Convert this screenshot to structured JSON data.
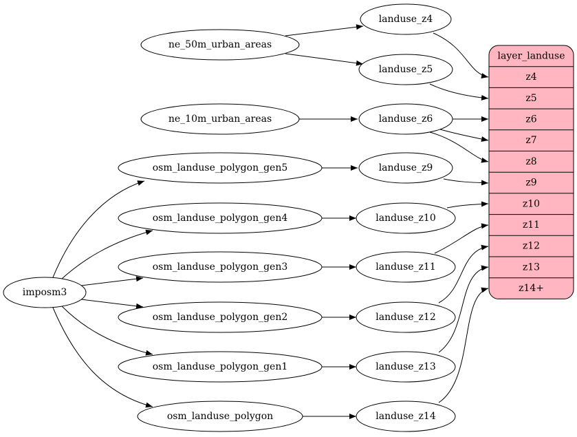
{
  "nodes": {
    "ne50": "ne_50m_urban_areas",
    "ne10": "ne_10m_urban_areas",
    "gen5": "osm_landuse_polygon_gen5",
    "gen4": "osm_landuse_polygon_gen4",
    "gen3": "osm_landuse_polygon_gen3",
    "gen2": "osm_landuse_polygon_gen2",
    "gen1": "osm_landuse_polygon_gen1",
    "poly": "osm_landuse_polygon",
    "imposm3": "imposm3",
    "z4": "landuse_z4",
    "z5": "landuse_z5",
    "z6": "landuse_z6",
    "z9": "landuse_z9",
    "z10": "landuse_z10",
    "z11": "landuse_z11",
    "z12": "landuse_z12",
    "z13": "landuse_z13",
    "z14": "landuse_z14"
  },
  "layer": {
    "title": "layer_landuse",
    "fill": "#ffb6c1",
    "rows": [
      "z4",
      "z5",
      "z6",
      "z7",
      "z8",
      "z9",
      "z10",
      "z11",
      "z12",
      "z13",
      "z14+"
    ]
  },
  "edges": [
    [
      "ne50",
      "z4"
    ],
    [
      "ne50",
      "z5"
    ],
    [
      "ne10",
      "z6"
    ],
    [
      "gen5",
      "z9"
    ],
    [
      "gen4",
      "z10"
    ],
    [
      "gen3",
      "z11"
    ],
    [
      "gen2",
      "z12"
    ],
    [
      "gen1",
      "z13"
    ],
    [
      "poly",
      "z14"
    ],
    [
      "imposm3",
      "gen5"
    ],
    [
      "imposm3",
      "gen4"
    ],
    [
      "imposm3",
      "gen3"
    ],
    [
      "imposm3",
      "gen2"
    ],
    [
      "imposm3",
      "gen1"
    ],
    [
      "imposm3",
      "poly"
    ],
    [
      "z4",
      "layer:z4"
    ],
    [
      "z5",
      "layer:z5"
    ],
    [
      "z6",
      "layer:z6"
    ],
    [
      "z6",
      "layer:z7"
    ],
    [
      "z6",
      "layer:z8"
    ],
    [
      "z9",
      "layer:z9"
    ],
    [
      "z10",
      "layer:z10"
    ],
    [
      "z11",
      "layer:z11"
    ],
    [
      "z12",
      "layer:z12"
    ],
    [
      "z13",
      "layer:z13"
    ],
    [
      "z14",
      "layer:z14+"
    ]
  ]
}
